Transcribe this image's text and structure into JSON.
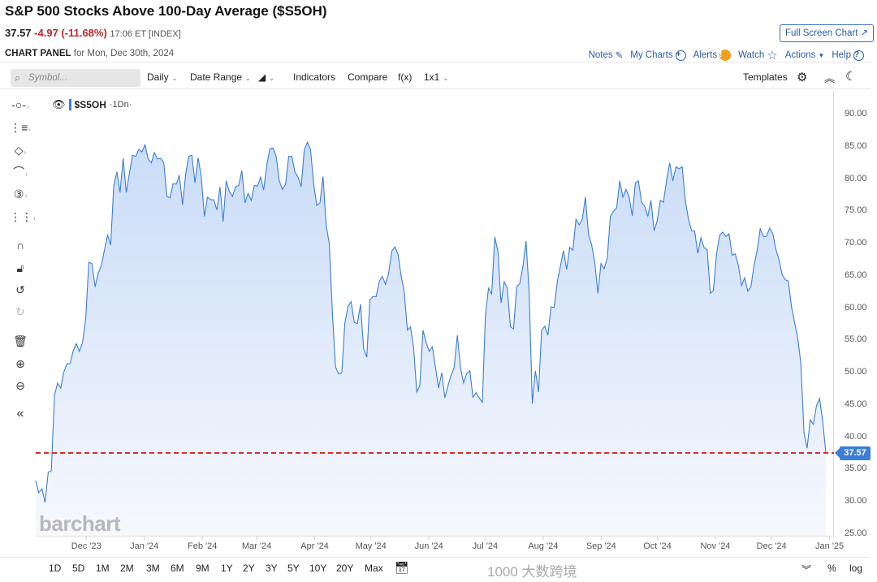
{
  "header": {
    "title": "S&P 500 Stocks Above 100-Day Average ($S5OH)",
    "last": "37.57",
    "change": "-4.97 (-11.68%)",
    "meta": "17:06 ET [INDEX]",
    "panel_label": "CHART PANEL",
    "panel_date": "for Mon, Dec 30th, 2024",
    "fullscreen": "Full Screen Chart ↗",
    "links": {
      "notes": "Notes",
      "mycharts": "My Charts",
      "alerts": "Alerts",
      "watch": "Watch",
      "actions": "Actions",
      "help": "Help"
    }
  },
  "toolbar": {
    "search_placeholder": "Symbol...",
    "interval": "Daily",
    "date_range": "Date Range",
    "indicators": "Indicators",
    "compare": "Compare",
    "fx": "f(x)",
    "layout": "1x1",
    "templates": "Templates"
  },
  "legend": {
    "symbol": "$S5OH",
    "interval": "·1Dn·"
  },
  "price_badge": "37.57",
  "brand": "barchart",
  "watermark": "1000 大数跨境",
  "colors": {
    "line": "#3b7dd8",
    "fill": "#cfe0f8",
    "price_line": "#d42a2a"
  },
  "bottom": {
    "ranges": [
      "1D",
      "5D",
      "1M",
      "2M",
      "3M",
      "6M",
      "9M",
      "1Y",
      "2Y",
      "3Y",
      "5Y",
      "10Y",
      "20Y",
      "Max"
    ],
    "percent": "%",
    "log": "log"
  },
  "chart_data": {
    "type": "area",
    "title": "S&P 500 Stocks Above 100-Day Average ($S5OH)",
    "xlabel": "",
    "ylabel": "",
    "x_start": "2023-11-04",
    "x_end": "2024-12-30",
    "ylim": [
      25,
      90
    ],
    "yticks": [
      "90.00",
      "85.00",
      "80.00",
      "75.00",
      "70.00",
      "65.00",
      "60.00",
      "55.00",
      "50.00",
      "45.00",
      "40.00",
      "35.00",
      "30.00",
      "25.00"
    ],
    "xticks": [
      {
        "label": "Dec '23",
        "date": "2023-12-01"
      },
      {
        "label": "Jan '24",
        "date": "2024-01-01"
      },
      {
        "label": "Feb '24",
        "date": "2024-02-01"
      },
      {
        "label": "Mar '24",
        "date": "2024-03-01"
      },
      {
        "label": "Apr '24",
        "date": "2024-04-01"
      },
      {
        "label": "May '24",
        "date": "2024-05-01"
      },
      {
        "label": "Jun '24",
        "date": "2024-06-01"
      },
      {
        "label": "Jul '24",
        "date": "2024-07-01"
      },
      {
        "label": "Aug '24",
        "date": "2024-08-01"
      },
      {
        "label": "Sep '24",
        "date": "2024-09-01"
      },
      {
        "label": "Oct '24",
        "date": "2024-10-01"
      },
      {
        "label": "Nov '24",
        "date": "2024-11-01"
      },
      {
        "label": "Dec '24",
        "date": "2024-12-01"
      },
      {
        "label": "Jan '25",
        "date": "2025-01-01"
      }
    ],
    "last_value": 37.57,
    "values": [
      33.3,
      31.4,
      32.0,
      29.9,
      34.6,
      34.8,
      46.5,
      48.4,
      47.6,
      50.1,
      51.4,
      51.4,
      53.4,
      54.5,
      53.3,
      54.7,
      58.3,
      67.1,
      66.9,
      63.3,
      65.4,
      66.6,
      69.0,
      71.3,
      69.8,
      79.0,
      81.1,
      77.9,
      83.2,
      77.9,
      80.9,
      83.7,
      83.5,
      84.6,
      84.2,
      85.3,
      83.1,
      82.5,
      84.1,
      83.1,
      83.2,
      82.5,
      77.3,
      77.1,
      79.3,
      79.2,
      80.6,
      76.0,
      80.7,
      83.5,
      83.7,
      79.4,
      83.3,
      80.4,
      74.2,
      77.2,
      76.8,
      76.8,
      75.2,
      78.8,
      73.4,
      79.7,
      78.1,
      77.3,
      78.8,
      79.0,
      81.3,
      76.3,
      77.8,
      76.7,
      79.0,
      78.9,
      80.3,
      78.3,
      82.2,
      84.7,
      84.8,
      83.5,
      79.7,
      78.4,
      79.2,
      83.5,
      83.5,
      81.1,
      80.3,
      78.8,
      84.5,
      85.7,
      84.6,
      79.2,
      75.9,
      76.3,
      80.4,
      72.8,
      70.0,
      59.1,
      50.9,
      49.8,
      50.0,
      57.7,
      60.3,
      61.0,
      57.8,
      57.6,
      60.6,
      53.7,
      52.4,
      61.3,
      61.8,
      61.8,
      64.1,
      64.9,
      63.7,
      65.4,
      68.8,
      69.5,
      68.4,
      65.0,
      62.5,
      56.6,
      57.1,
      54.0,
      47.0,
      48.0,
      56.6,
      54.7,
      53.3,
      54.0,
      50.8,
      47.6,
      50.0,
      46.1,
      48.0,
      49.6,
      50.8,
      55.8,
      50.8,
      48.4,
      49.9,
      50.3,
      46.2,
      46.9,
      46.1,
      45.4,
      58.9,
      63.1,
      62.2,
      71.0,
      68.8,
      60.8,
      64.1,
      63.1,
      57.1,
      56.8,
      63.3,
      63.8,
      66.5,
      70.4,
      62.5,
      45.2,
      50.3,
      47.0,
      56.6,
      57.2,
      55.8,
      60.2,
      60.1,
      64.1,
      66.5,
      68.9,
      66.0,
      69.4,
      69.0,
      73.8,
      72.9,
      73.7,
      77.2,
      71.5,
      69.8,
      67.1,
      62.3,
      66.9,
      66.1,
      67.7,
      74.2,
      75.0,
      75.5,
      79.7,
      77.2,
      78.4,
      77.3,
      74.3,
      79.4,
      79.7,
      76.4,
      75.8,
      74.2,
      76.7,
      72.0,
      73.5,
      76.7,
      76.4,
      79.8,
      82.5,
      79.7,
      81.9,
      81.6,
      81.9,
      76.7,
      73.8,
      72.0,
      71.9,
      68.5,
      70.9,
      69.4,
      69.0,
      62.3,
      62.7,
      68.4,
      71.3,
      71.8,
      71.1,
      71.5,
      68.2,
      68.4,
      66.6,
      63.5,
      64.7,
      62.6,
      63.3,
      66.6,
      68.9,
      72.3,
      71.1,
      71.1,
      72.4,
      71.6,
      69.1,
      67.5,
      65.2,
      64.4,
      64.2,
      60.2,
      57.8,
      55.3,
      51.5,
      40.7,
      38.3,
      42.7,
      42.0,
      44.9,
      46.0,
      42.4,
      37.57
    ]
  }
}
